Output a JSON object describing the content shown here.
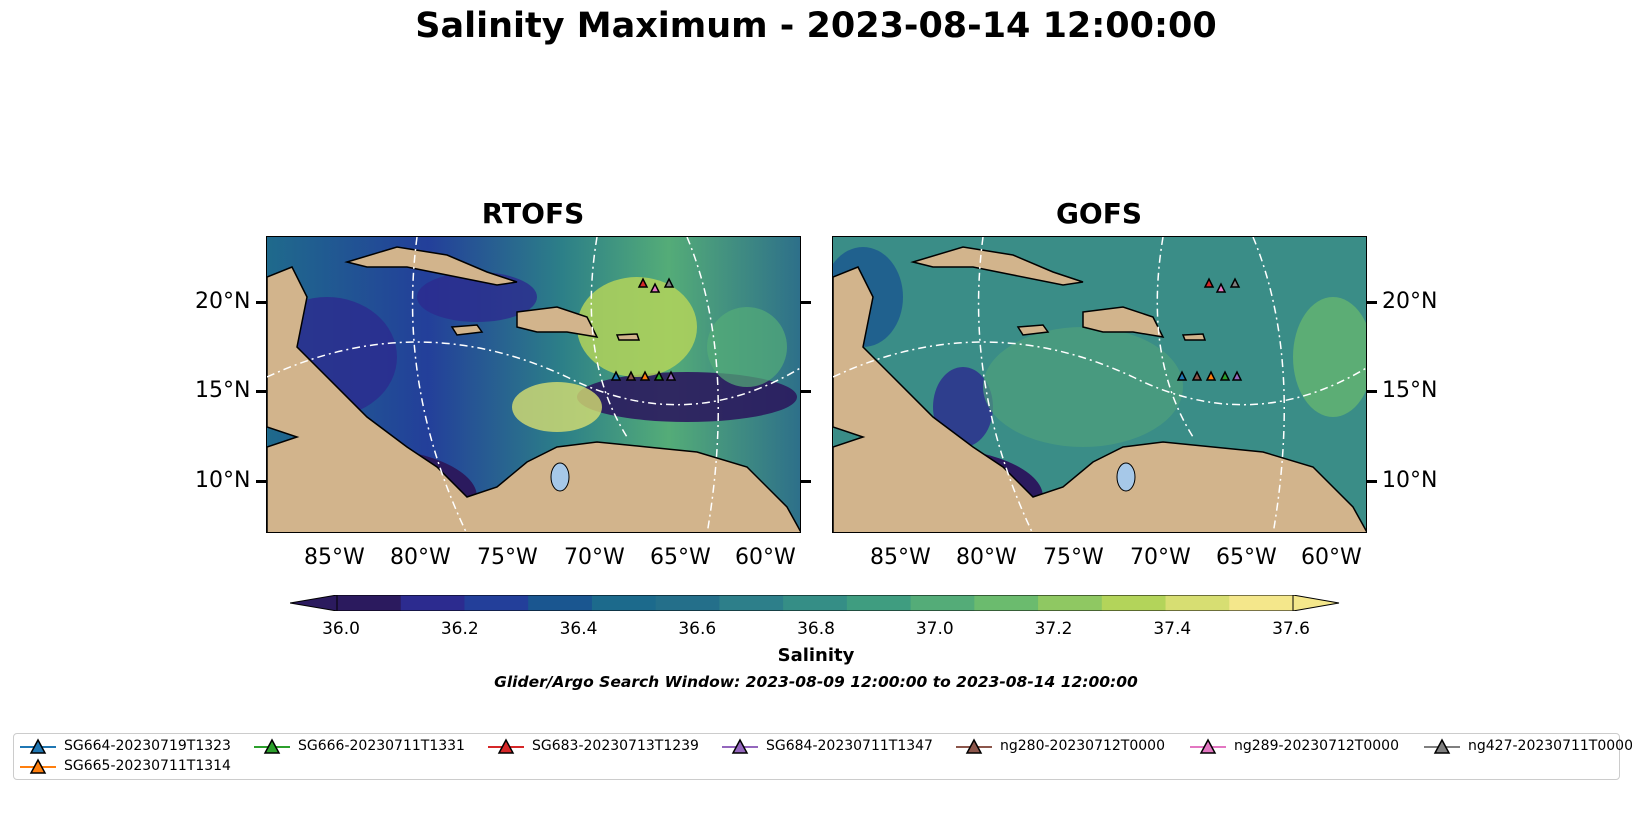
{
  "figure_title": "Salinity Maximum - 2023-08-14 12:00:00",
  "panels": [
    {
      "title": "RTOFS"
    },
    {
      "title": "GOFS"
    }
  ],
  "lat_ticks": [
    "20°N",
    "15°N",
    "10°N"
  ],
  "lon_ticks": [
    "85°W",
    "80°W",
    "75°W",
    "70°W",
    "65°W",
    "60°W"
  ],
  "colorbar": {
    "label": "Salinity",
    "ticks": [
      "36.0",
      "36.2",
      "36.4",
      "36.6",
      "36.8",
      "37.0",
      "37.2",
      "37.4",
      "37.6"
    ],
    "colors": [
      "#2b1a5e",
      "#2c2b8f",
      "#233f9a",
      "#1a5690",
      "#1c6a8c",
      "#246f8a",
      "#2d7f8a",
      "#358e86",
      "#3f9d80",
      "#54ac78",
      "#6bbb6e",
      "#8fc862",
      "#b3d45a",
      "#d7de72",
      "#f4e78b"
    ]
  },
  "search_window": "Glider/Argo Search Window: 2023-08-09 12:00:00 to 2023-08-14 12:00:00",
  "legend": [
    {
      "label": "SG664-20230719T1323",
      "color": "#1f77b4"
    },
    {
      "label": "SG665-20230711T1314",
      "color": "#ff7f0e"
    },
    {
      "label": "SG666-20230711T1331",
      "color": "#2ca02c"
    },
    {
      "label": "SG683-20230713T1239",
      "color": "#d62728"
    },
    {
      "label": "SG684-20230711T1347",
      "color": "#9467bd"
    },
    {
      "label": "ng280-20230712T0000",
      "color": "#8c564b"
    },
    {
      "label": "ng289-20230712T0000",
      "color": "#e377c2"
    },
    {
      "label": "ng427-20230711T0000",
      "color": "#7f7f7f"
    }
  ],
  "colors": {
    "land": "#d2b48c",
    "lake": "#a6c8e8"
  }
}
